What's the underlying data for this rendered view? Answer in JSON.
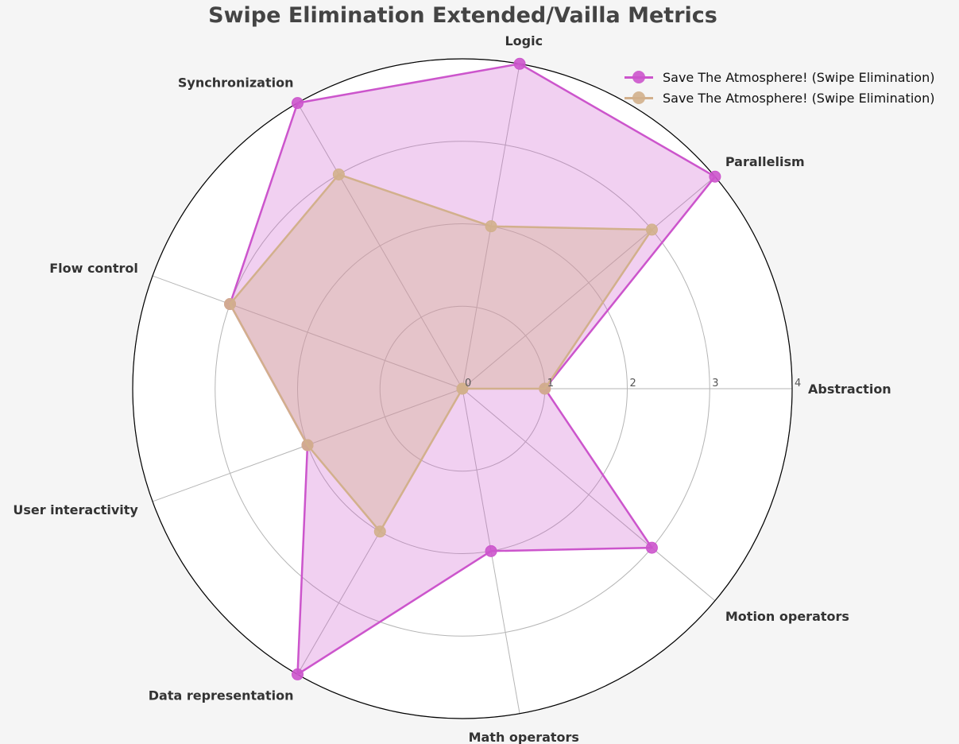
{
  "chart_data": {
    "type": "radar",
    "title": "Swipe Elimination Extended/Vailla Metrics",
    "categories": [
      "Abstraction",
      "Parallelism",
      "Logic",
      "Synchronization",
      "Flow control",
      "User interactivity",
      "Data representation",
      "Math operators",
      "Motion operators"
    ],
    "rlim": [
      0,
      4
    ],
    "rticks": [
      "0",
      "1",
      "2",
      "3",
      "4"
    ],
    "grid": true,
    "legend_position": "top-right",
    "series": [
      {
        "name": "Save The Atmosphere! (Swipe Elimination)",
        "color": "#cc55cc",
        "values": [
          1,
          4,
          4,
          4,
          3,
          2,
          4,
          2,
          3
        ]
      },
      {
        "name": "Save The Atmosphere! (Swipe Elimination)",
        "color": "#d2b08c",
        "values": [
          1,
          3,
          2,
          3,
          3,
          2,
          2,
          0,
          0
        ]
      }
    ]
  }
}
